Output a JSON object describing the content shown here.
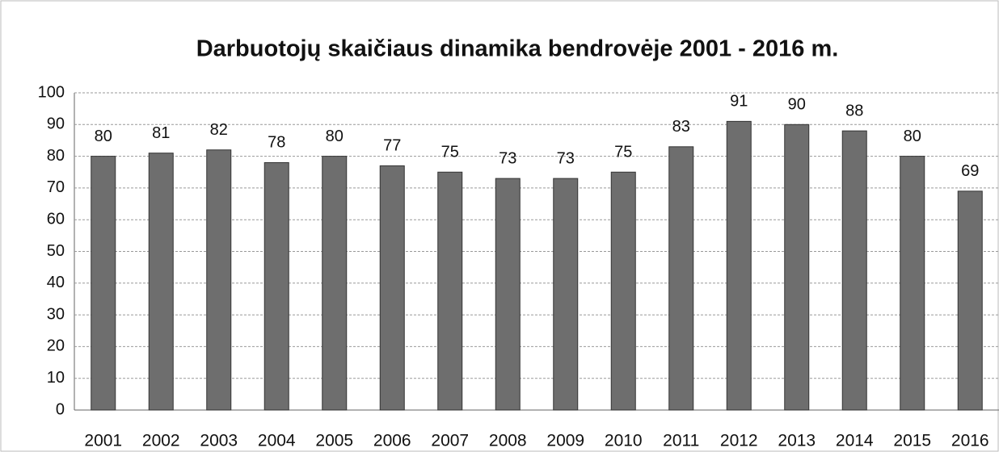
{
  "chart_data": {
    "type": "bar",
    "title": "Darbuotojų skaičiaus dinamika bendrovėje 2001 - 2016 m.",
    "categories": [
      "2001",
      "2002",
      "2003",
      "2004",
      "2005",
      "2006",
      "2007",
      "2008",
      "2009",
      "2010",
      "2011",
      "2012",
      "2013",
      "2014",
      "2015",
      "2016"
    ],
    "values": [
      80,
      81,
      82,
      78,
      80,
      77,
      75,
      73,
      73,
      75,
      83,
      91,
      90,
      88,
      80,
      69
    ],
    "color": "#6e6e6e",
    "ylim": [
      0,
      100
    ],
    "yticks": [
      0,
      10,
      20,
      30,
      40,
      50,
      60,
      70,
      80,
      90,
      100
    ],
    "grid": true
  }
}
